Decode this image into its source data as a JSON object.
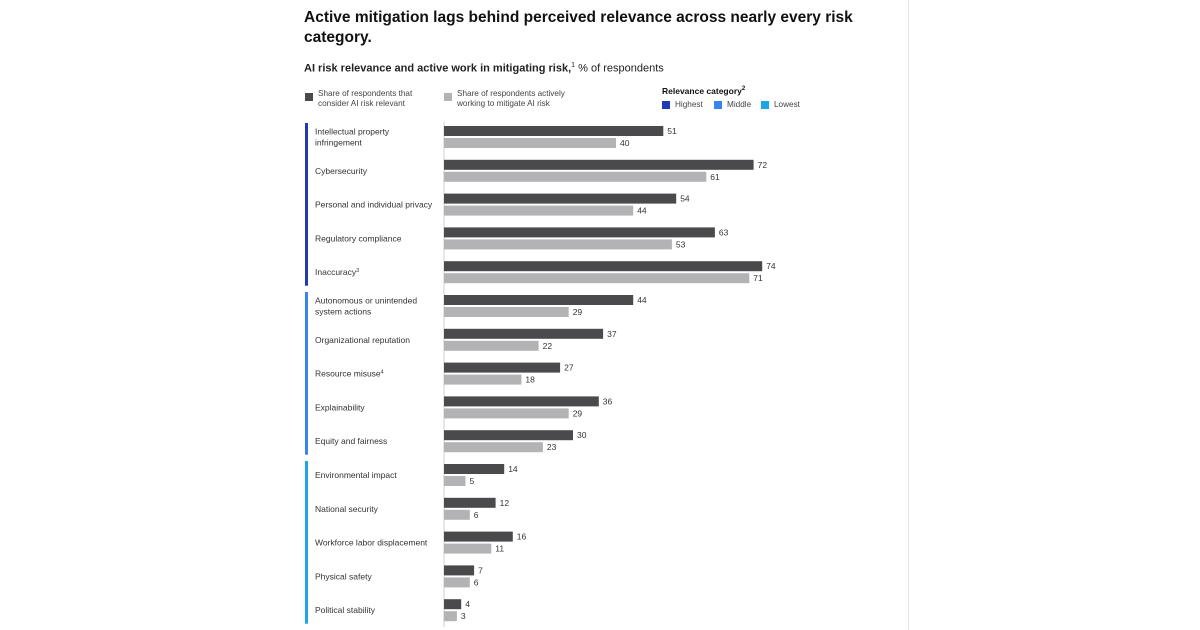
{
  "colors": {
    "relevant_bar": "#4a4a4c",
    "mitigate_bar": "#b3b3b5",
    "highest": "#1f3bb3",
    "middle": "#3a84f0",
    "lowest": "#1ea7e8"
  },
  "header": {
    "title": "Active mitigation lags behind perceived relevance across nearly every risk category.",
    "subtitle_bold": "AI risk relevance and active work in mitigating risk,",
    "subtitle_sup": "1",
    "subtitle_rest": " % of respondents"
  },
  "legend": {
    "relevant_line1": "Share of respondents that",
    "relevant_line2": "consider AI risk relevant",
    "mitigate_line1": "Share of respondents actively",
    "mitigate_line2": "working to mitigate AI risk",
    "relevance_title": "Relevance category",
    "relevance_sup": "2",
    "highest": "Highest",
    "middle": "Middle",
    "lowest": "Lowest"
  },
  "chart_data": {
    "type": "bar",
    "orientation": "horizontal",
    "categories": [
      "Intellectual property infringement",
      "Cybersecurity",
      "Personal and individual privacy",
      "Regulatory compliance",
      "Inaccuracy",
      "Autonomous or unintended system actions",
      "Organizational reputation",
      "Resource misuse",
      "Explainability",
      "Equity and fairness",
      "Environmental impact",
      "National security",
      "Workforce labor displacement",
      "Physical safety",
      "Political stability"
    ],
    "category_lines": [
      [
        "Intellectual property",
        "infringement"
      ],
      [
        "Cybersecurity"
      ],
      [
        "Personal and individual privacy"
      ],
      [
        "Regulatory compliance"
      ],
      [
        "Inaccuracy"
      ],
      [
        "Autonomous or unintended",
        "system actions"
      ],
      [
        "Organizational reputation"
      ],
      [
        "Resource misuse"
      ],
      [
        "Explainability"
      ],
      [
        "Equity and fairness"
      ],
      [
        "Environmental impact"
      ],
      [
        "National security"
      ],
      [
        "Workforce labor displacement"
      ],
      [
        "Physical safety"
      ],
      [
        "Political stability"
      ]
    ],
    "category_superscripts": [
      "",
      "",
      "",
      "",
      "3",
      "",
      "",
      "4",
      "",
      "",
      "",
      "",
      "",
      "",
      ""
    ],
    "relevance_groups": [
      {
        "name": "Highest",
        "color_key": "highest",
        "start": 0,
        "end": 4
      },
      {
        "name": "Middle",
        "color_key": "middle",
        "start": 5,
        "end": 9
      },
      {
        "name": "Lowest",
        "color_key": "lowest",
        "start": 10,
        "end": 14
      }
    ],
    "series": [
      {
        "name": "Share of respondents that consider AI risk relevant",
        "values": [
          51,
          72,
          54,
          63,
          74,
          44,
          37,
          27,
          36,
          30,
          14,
          12,
          16,
          7,
          4
        ]
      },
      {
        "name": "Share of respondents actively working to mitigate AI risk",
        "values": [
          40,
          61,
          44,
          53,
          71,
          29,
          22,
          18,
          29,
          23,
          5,
          6,
          11,
          6,
          3
        ]
      }
    ],
    "xlim": [
      0,
      100
    ],
    "grid": false,
    "legend_position": "top"
  }
}
